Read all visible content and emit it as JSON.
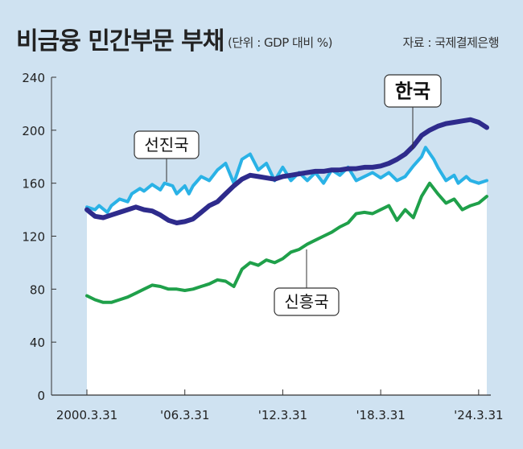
{
  "header": {
    "title": "비금융 민간부문 부채",
    "unit": "(단위 : GDP 대비 %)",
    "source": "자료 : 국제결제은행"
  },
  "colors": {
    "background": "#cfe2f1",
    "plot_area": "#ffffff",
    "korea": "#2e2b8c",
    "advanced": "#2ab2e6",
    "emerging": "#1fa04a"
  },
  "chart_data": {
    "type": "line",
    "title": "비금융 민간부문 부채",
    "ylabel": "GDP 대비 %",
    "ylim": [
      0,
      240
    ],
    "yticks": [
      0,
      40,
      80,
      120,
      160,
      200,
      240
    ],
    "xlim": [
      2000.0,
      2024.75
    ],
    "xticks": [
      {
        "x": 2000.25,
        "label": "2000.3.31"
      },
      {
        "x": 2006.25,
        "label": "'06.3.31"
      },
      {
        "x": 2012.25,
        "label": "'12.3.31"
      },
      {
        "x": 2018.25,
        "label": "'18.3.31"
      },
      {
        "x": 2024.25,
        "label": "'24.3.31"
      }
    ],
    "grid": false,
    "series": [
      {
        "name": "선진국",
        "color": "#2ab2e6",
        "points": [
          [
            2000.25,
            142
          ],
          [
            2000.75,
            140
          ],
          [
            2001.0,
            143
          ],
          [
            2001.5,
            138
          ],
          [
            2001.75,
            143
          ],
          [
            2002.25,
            148
          ],
          [
            2002.75,
            146
          ],
          [
            2003.0,
            152
          ],
          [
            2003.5,
            156
          ],
          [
            2003.75,
            154
          ],
          [
            2004.25,
            159
          ],
          [
            2004.75,
            155
          ],
          [
            2005.0,
            160
          ],
          [
            2005.5,
            158
          ],
          [
            2005.75,
            152
          ],
          [
            2006.25,
            158
          ],
          [
            2006.5,
            152
          ],
          [
            2006.75,
            158
          ],
          [
            2007.25,
            165
          ],
          [
            2007.75,
            162
          ],
          [
            2008.25,
            170
          ],
          [
            2008.75,
            175
          ],
          [
            2009.25,
            160
          ],
          [
            2009.75,
            178
          ],
          [
            2010.25,
            182
          ],
          [
            2010.75,
            170
          ],
          [
            2011.25,
            175
          ],
          [
            2011.75,
            162
          ],
          [
            2012.25,
            172
          ],
          [
            2012.75,
            162
          ],
          [
            2013.25,
            168
          ],
          [
            2013.75,
            162
          ],
          [
            2014.25,
            168
          ],
          [
            2014.75,
            160
          ],
          [
            2015.25,
            170
          ],
          [
            2015.75,
            166
          ],
          [
            2016.25,
            172
          ],
          [
            2016.75,
            162
          ],
          [
            2017.25,
            165
          ],
          [
            2017.75,
            168
          ],
          [
            2018.25,
            164
          ],
          [
            2018.75,
            168
          ],
          [
            2019.25,
            162
          ],
          [
            2019.75,
            165
          ],
          [
            2020.25,
            173
          ],
          [
            2020.75,
            180
          ],
          [
            2021.0,
            187
          ],
          [
            2021.5,
            178
          ],
          [
            2021.75,
            172
          ],
          [
            2022.25,
            162
          ],
          [
            2022.75,
            166
          ],
          [
            2023.0,
            160
          ],
          [
            2023.5,
            165
          ],
          [
            2023.75,
            162
          ],
          [
            2024.25,
            160
          ],
          [
            2024.75,
            162
          ]
        ]
      },
      {
        "name": "한국",
        "color": "#2e2b8c",
        "points": [
          [
            2000.25,
            140
          ],
          [
            2000.75,
            135
          ],
          [
            2001.25,
            134
          ],
          [
            2001.75,
            136
          ],
          [
            2002.25,
            138
          ],
          [
            2002.75,
            140
          ],
          [
            2003.25,
            142
          ],
          [
            2003.75,
            140
          ],
          [
            2004.25,
            139
          ],
          [
            2004.75,
            136
          ],
          [
            2005.25,
            132
          ],
          [
            2005.75,
            130
          ],
          [
            2006.25,
            131
          ],
          [
            2006.75,
            133
          ],
          [
            2007.25,
            138
          ],
          [
            2007.75,
            143
          ],
          [
            2008.25,
            146
          ],
          [
            2008.75,
            152
          ],
          [
            2009.25,
            158
          ],
          [
            2009.75,
            163
          ],
          [
            2010.25,
            166
          ],
          [
            2010.75,
            165
          ],
          [
            2011.25,
            164
          ],
          [
            2011.75,
            163
          ],
          [
            2012.25,
            165
          ],
          [
            2012.75,
            166
          ],
          [
            2013.25,
            167
          ],
          [
            2013.75,
            168
          ],
          [
            2014.25,
            169
          ],
          [
            2014.75,
            169
          ],
          [
            2015.25,
            170
          ],
          [
            2015.75,
            170
          ],
          [
            2016.25,
            171
          ],
          [
            2016.75,
            171
          ],
          [
            2017.25,
            172
          ],
          [
            2017.75,
            172
          ],
          [
            2018.25,
            173
          ],
          [
            2018.75,
            175
          ],
          [
            2019.25,
            178
          ],
          [
            2019.75,
            182
          ],
          [
            2020.25,
            188
          ],
          [
            2020.75,
            196
          ],
          [
            2021.25,
            200
          ],
          [
            2021.75,
            203
          ],
          [
            2022.25,
            205
          ],
          [
            2022.75,
            206
          ],
          [
            2023.25,
            207
          ],
          [
            2023.75,
            208
          ],
          [
            2024.25,
            206
          ],
          [
            2024.75,
            202
          ]
        ]
      },
      {
        "name": "신흥국",
        "color": "#1fa04a",
        "points": [
          [
            2000.25,
            75
          ],
          [
            2000.75,
            72
          ],
          [
            2001.25,
            70
          ],
          [
            2001.75,
            70
          ],
          [
            2002.25,
            72
          ],
          [
            2002.75,
            74
          ],
          [
            2003.25,
            77
          ],
          [
            2003.75,
            80
          ],
          [
            2004.25,
            83
          ],
          [
            2004.75,
            82
          ],
          [
            2005.25,
            80
          ],
          [
            2005.75,
            80
          ],
          [
            2006.25,
            79
          ],
          [
            2006.75,
            80
          ],
          [
            2007.25,
            82
          ],
          [
            2007.75,
            84
          ],
          [
            2008.25,
            87
          ],
          [
            2008.75,
            86
          ],
          [
            2009.25,
            82
          ],
          [
            2009.75,
            95
          ],
          [
            2010.25,
            100
          ],
          [
            2010.75,
            98
          ],
          [
            2011.25,
            102
          ],
          [
            2011.75,
            100
          ],
          [
            2012.25,
            103
          ],
          [
            2012.75,
            108
          ],
          [
            2013.25,
            110
          ],
          [
            2013.75,
            114
          ],
          [
            2014.25,
            117
          ],
          [
            2014.75,
            120
          ],
          [
            2015.25,
            123
          ],
          [
            2015.75,
            127
          ],
          [
            2016.25,
            130
          ],
          [
            2016.75,
            137
          ],
          [
            2017.25,
            138
          ],
          [
            2017.75,
            137
          ],
          [
            2018.25,
            140
          ],
          [
            2018.75,
            143
          ],
          [
            2019.25,
            132
          ],
          [
            2019.75,
            140
          ],
          [
            2020.25,
            134
          ],
          [
            2020.75,
            150
          ],
          [
            2021.25,
            160
          ],
          [
            2021.75,
            152
          ],
          [
            2022.25,
            145
          ],
          [
            2022.75,
            148
          ],
          [
            2023.25,
            140
          ],
          [
            2023.75,
            143
          ],
          [
            2024.25,
            145
          ],
          [
            2024.75,
            150
          ]
        ]
      }
    ]
  },
  "callouts": [
    {
      "series_index": 0,
      "label": "선진국"
    },
    {
      "series_index": 1,
      "label": "한국"
    },
    {
      "series_index": 2,
      "label": "신흥국"
    }
  ]
}
